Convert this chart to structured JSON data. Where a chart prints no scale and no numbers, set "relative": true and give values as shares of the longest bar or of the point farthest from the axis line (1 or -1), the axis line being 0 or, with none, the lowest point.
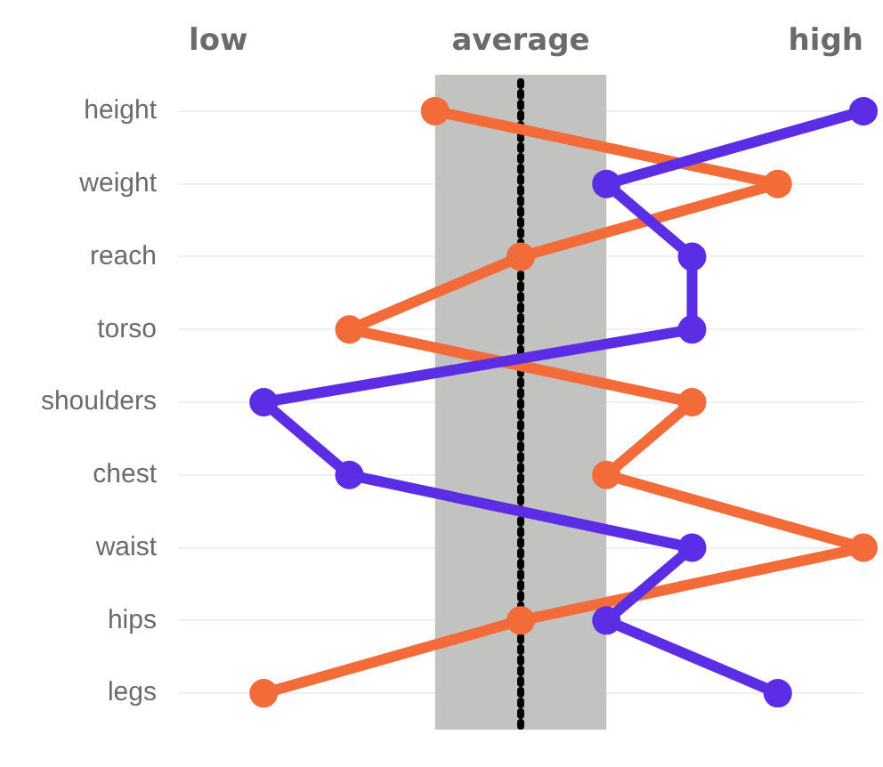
{
  "chart_data": {
    "type": "line",
    "orientation": "horizontal",
    "relative": true,
    "categories": [
      "height",
      "weight",
      "reach",
      "torso",
      "shoulders",
      "chest",
      "waist",
      "hips",
      "legs"
    ],
    "series": [
      {
        "color": "#5b2ee6",
        "values": [
          1,
          0.25,
          0.5,
          0.5,
          -0.75,
          -0.5,
          0.5,
          0.25,
          0.75
        ]
      },
      {
        "color": "#f26b38",
        "values": [
          -0.25,
          0.75,
          0,
          -0.5,
          0.5,
          0.25,
          1,
          0,
          -0.75
        ]
      }
    ],
    "annotations": [
      "low",
      "average",
      "high"
    ],
    "bands": [
      {
        "axis": "x",
        "from": -0.25,
        "to": 0.25,
        "color": "#c2c2c0"
      }
    ],
    "ref_lines": [
      {
        "axis": "x",
        "value": 0,
        "color": "#000000",
        "line_style": "dotted"
      }
    ],
    "grid": "y",
    "legend": false,
    "marker": "circle",
    "line_style": "solid"
  }
}
